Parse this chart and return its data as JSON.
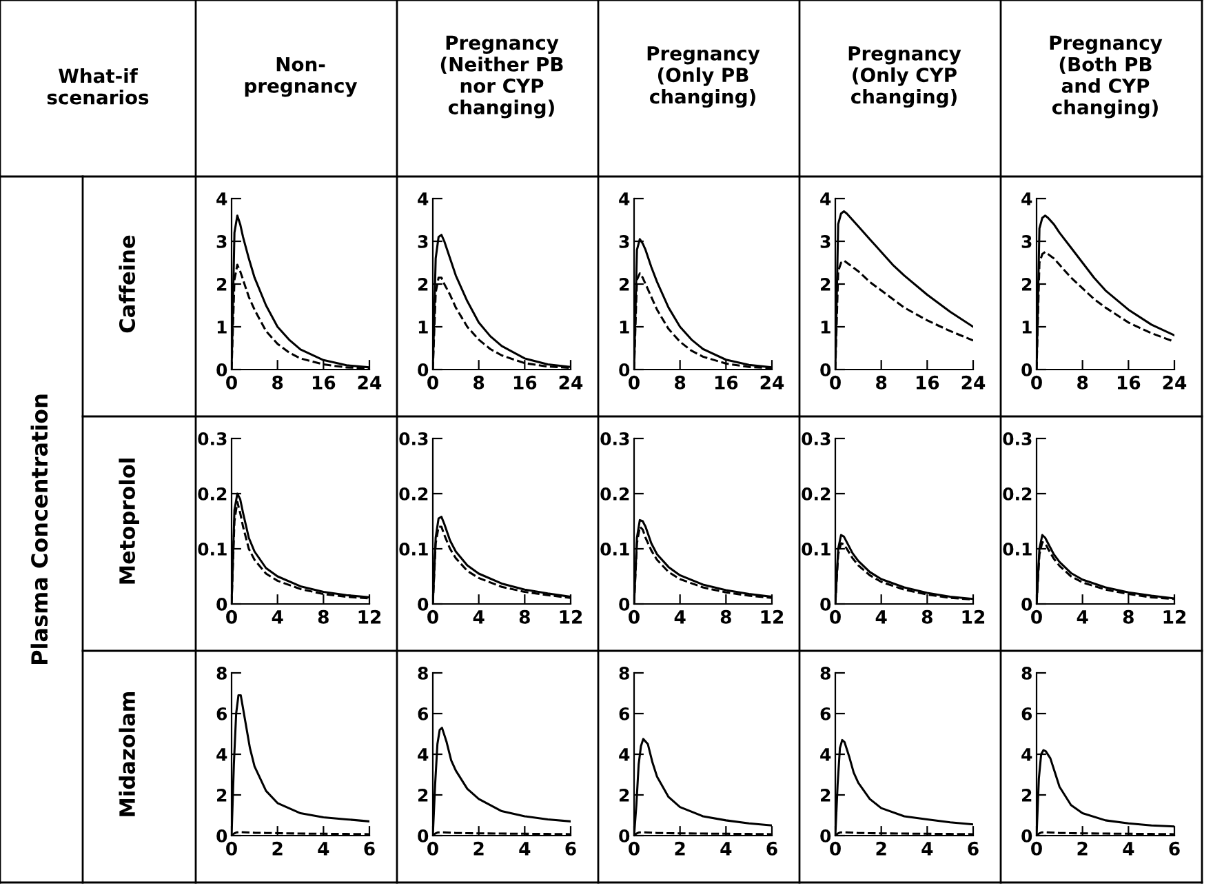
{
  "chart_data": [
    {
      "type": "line",
      "title": "Non-\npregnancy",
      "ylabel": "Caffeine",
      "annotations": [
        "What-if\nscenarios",
        "Plasma Concentration"
      ],
      "x": [
        0,
        0.5,
        1,
        1.5,
        2,
        3,
        4,
        6,
        8,
        10,
        12,
        16,
        20,
        24
      ],
      "series": [
        {
          "color": "#000000",
          "line_style": "solid",
          "values": [
            0,
            3.2,
            3.6,
            3.4,
            3.1,
            2.6,
            2.15,
            1.5,
            1.0,
            0.7,
            0.47,
            0.22,
            0.1,
            0.05
          ]
        },
        {
          "color": "#000000",
          "line_style": "dashed",
          "values": [
            0,
            2.1,
            2.45,
            2.3,
            2.1,
            1.7,
            1.4,
            0.9,
            0.6,
            0.4,
            0.26,
            0.12,
            0.05,
            0.03
          ]
        }
      ],
      "xlim": [
        0,
        24
      ],
      "ylim": [
        0,
        4
      ],
      "xticks": [
        0,
        8,
        16,
        24
      ],
      "yticks": [
        0,
        1,
        2,
        3,
        4
      ]
    },
    {
      "type": "line",
      "title": "Pregnancy\n(Neither PB\nnor CYP\nchanging)",
      "x": [
        0,
        0.5,
        1,
        1.5,
        2,
        3,
        4,
        6,
        8,
        10,
        12,
        16,
        20,
        24
      ],
      "series": [
        {
          "color": "#000000",
          "line_style": "solid",
          "values": [
            0,
            2.6,
            3.1,
            3.15,
            3.0,
            2.6,
            2.2,
            1.6,
            1.1,
            0.78,
            0.55,
            0.26,
            0.12,
            0.06
          ]
        },
        {
          "color": "#000000",
          "line_style": "dashed",
          "values": [
            0,
            1.8,
            2.15,
            2.15,
            2.0,
            1.75,
            1.45,
            1.0,
            0.7,
            0.48,
            0.33,
            0.15,
            0.07,
            0.04
          ]
        }
      ],
      "xlim": [
        0,
        24
      ],
      "ylim": [
        0,
        4
      ],
      "xticks": [
        0,
        8,
        16,
        24
      ],
      "yticks": [
        0,
        1,
        2,
        3,
        4
      ]
    },
    {
      "type": "line",
      "title": "Pregnancy\n(Only PB\nchanging)",
      "x": [
        0,
        0.5,
        1,
        1.5,
        2,
        3,
        4,
        6,
        8,
        10,
        12,
        16,
        20,
        24
      ],
      "series": [
        {
          "color": "#000000",
          "line_style": "solid",
          "values": [
            0,
            2.8,
            3.05,
            2.95,
            2.8,
            2.4,
            2.05,
            1.45,
            1.0,
            0.7,
            0.48,
            0.23,
            0.11,
            0.05
          ]
        },
        {
          "color": "#000000",
          "line_style": "dashed",
          "values": [
            0,
            2.1,
            2.25,
            2.15,
            2.0,
            1.7,
            1.4,
            0.95,
            0.65,
            0.44,
            0.3,
            0.14,
            0.06,
            0.03
          ]
        }
      ],
      "xlim": [
        0,
        24
      ],
      "ylim": [
        0,
        4
      ],
      "xticks": [
        0,
        8,
        16,
        24
      ],
      "yticks": [
        0,
        1,
        2,
        3,
        4
      ]
    },
    {
      "type": "line",
      "title": "Pregnancy\n(Only CYP\nchanging)",
      "x": [
        0,
        0.5,
        1,
        1.5,
        2,
        3,
        4,
        6,
        8,
        10,
        12,
        16,
        20,
        24
      ],
      "series": [
        {
          "color": "#000000",
          "line_style": "solid",
          "values": [
            0,
            3.4,
            3.65,
            3.7,
            3.65,
            3.5,
            3.35,
            3.05,
            2.75,
            2.45,
            2.2,
            1.75,
            1.35,
            1.0
          ]
        },
        {
          "color": "#000000",
          "line_style": "dashed",
          "values": [
            0,
            2.3,
            2.5,
            2.55,
            2.5,
            2.4,
            2.3,
            2.05,
            1.85,
            1.65,
            1.45,
            1.15,
            0.9,
            0.68
          ]
        }
      ],
      "xlim": [
        0,
        24
      ],
      "ylim": [
        0,
        4
      ],
      "xticks": [
        0,
        8,
        16,
        24
      ],
      "yticks": [
        0,
        1,
        2,
        3,
        4
      ]
    },
    {
      "type": "line",
      "title": "Pregnancy\n(Both PB\nand CYP\nchanging)",
      "x": [
        0,
        0.5,
        1,
        1.5,
        2,
        3,
        4,
        6,
        8,
        10,
        12,
        16,
        20,
        24
      ],
      "series": [
        {
          "color": "#000000",
          "line_style": "solid",
          "values": [
            0,
            3.3,
            3.55,
            3.6,
            3.55,
            3.4,
            3.2,
            2.85,
            2.5,
            2.15,
            1.85,
            1.4,
            1.05,
            0.8
          ]
        },
        {
          "color": "#000000",
          "line_style": "dashed",
          "values": [
            0,
            2.5,
            2.7,
            2.75,
            2.7,
            2.6,
            2.45,
            2.15,
            1.9,
            1.65,
            1.45,
            1.1,
            0.85,
            0.65
          ]
        }
      ],
      "xlim": [
        0,
        24
      ],
      "ylim": [
        0,
        4
      ],
      "xticks": [
        0,
        8,
        16,
        24
      ],
      "yticks": [
        0,
        1,
        2,
        3,
        4
      ]
    },
    {
      "type": "line",
      "ylabel": "Metoprolol",
      "x": [
        0,
        0.25,
        0.5,
        0.75,
        1,
        1.5,
        2,
        3,
        4,
        6,
        8,
        10,
        12
      ],
      "series": [
        {
          "color": "#000000",
          "line_style": "solid",
          "values": [
            0,
            0.17,
            0.2,
            0.19,
            0.165,
            0.12,
            0.095,
            0.065,
            0.05,
            0.032,
            0.022,
            0.016,
            0.012
          ]
        },
        {
          "color": "#000000",
          "line_style": "dashed",
          "values": [
            0,
            0.15,
            0.185,
            0.165,
            0.14,
            0.1,
            0.08,
            0.055,
            0.042,
            0.027,
            0.018,
            0.013,
            0.01
          ]
        }
      ],
      "xlim": [
        0,
        12
      ],
      "ylim": [
        0,
        0.3
      ],
      "xticks": [
        0,
        4,
        8,
        12
      ],
      "yticks": [
        0,
        0.1,
        0.2,
        0.3
      ]
    },
    {
      "type": "line",
      "x": [
        0,
        0.25,
        0.5,
        0.75,
        1,
        1.5,
        2,
        3,
        4,
        6,
        8,
        10,
        12
      ],
      "series": [
        {
          "color": "#000000",
          "line_style": "solid",
          "values": [
            0,
            0.12,
            0.155,
            0.158,
            0.145,
            0.115,
            0.095,
            0.07,
            0.055,
            0.037,
            0.026,
            0.019,
            0.013
          ]
        },
        {
          "color": "#000000",
          "line_style": "dashed",
          "values": [
            0,
            0.11,
            0.14,
            0.14,
            0.125,
            0.1,
            0.083,
            0.06,
            0.047,
            0.031,
            0.022,
            0.016,
            0.011
          ]
        }
      ],
      "xlim": [
        0,
        12
      ],
      "ylim": [
        0,
        0.3
      ],
      "xticks": [
        0,
        4,
        8,
        12
      ],
      "yticks": [
        0,
        0.1,
        0.2,
        0.3
      ]
    },
    {
      "type": "line",
      "x": [
        0,
        0.25,
        0.5,
        0.75,
        1,
        1.5,
        2,
        3,
        4,
        6,
        8,
        10,
        12
      ],
      "series": [
        {
          "color": "#000000",
          "line_style": "solid",
          "values": [
            0,
            0.12,
            0.152,
            0.15,
            0.14,
            0.11,
            0.09,
            0.067,
            0.052,
            0.035,
            0.025,
            0.018,
            0.013
          ]
        },
        {
          "color": "#000000",
          "line_style": "dashed",
          "values": [
            0,
            0.11,
            0.14,
            0.135,
            0.12,
            0.097,
            0.08,
            0.058,
            0.045,
            0.03,
            0.021,
            0.015,
            0.011
          ]
        }
      ],
      "xlim": [
        0,
        12
      ],
      "ylim": [
        0,
        0.3
      ],
      "xticks": [
        0,
        4,
        8,
        12
      ],
      "yticks": [
        0,
        0.1,
        0.2,
        0.3
      ]
    },
    {
      "type": "line",
      "x": [
        0,
        0.25,
        0.5,
        0.75,
        1,
        1.5,
        2,
        3,
        4,
        6,
        8,
        10,
        12
      ],
      "series": [
        {
          "color": "#000000",
          "line_style": "solid",
          "values": [
            0,
            0.1,
            0.125,
            0.122,
            0.112,
            0.092,
            0.078,
            0.058,
            0.045,
            0.03,
            0.02,
            0.013,
            0.009
          ]
        },
        {
          "color": "#000000",
          "line_style": "dashed",
          "values": [
            0,
            0.09,
            0.11,
            0.108,
            0.1,
            0.083,
            0.07,
            0.052,
            0.04,
            0.026,
            0.017,
            0.011,
            0.008
          ]
        }
      ],
      "xlim": [
        0,
        12
      ],
      "ylim": [
        0,
        0.3
      ],
      "xticks": [
        0,
        4,
        8,
        12
      ],
      "yticks": [
        0,
        0.1,
        0.2,
        0.3
      ]
    },
    {
      "type": "line",
      "x": [
        0,
        0.25,
        0.5,
        0.75,
        1,
        1.5,
        2,
        3,
        4,
        6,
        8,
        10,
        12
      ],
      "series": [
        {
          "color": "#000000",
          "line_style": "solid",
          "values": [
            0,
            0.1,
            0.125,
            0.12,
            0.11,
            0.09,
            0.076,
            0.056,
            0.044,
            0.03,
            0.021,
            0.015,
            0.01
          ]
        },
        {
          "color": "#000000",
          "line_style": "dashed",
          "values": [
            0,
            0.09,
            0.112,
            0.11,
            0.1,
            0.082,
            0.069,
            0.05,
            0.039,
            0.026,
            0.018,
            0.012,
            0.009
          ]
        }
      ],
      "xlim": [
        0,
        12
      ],
      "ylim": [
        0,
        0.3
      ],
      "xticks": [
        0,
        4,
        8,
        12
      ],
      "yticks": [
        0,
        0.1,
        0.2,
        0.3
      ]
    },
    {
      "type": "line",
      "ylabel": "Midazolam",
      "x": [
        0,
        0.1,
        0.2,
        0.3,
        0.4,
        0.6,
        0.8,
        1,
        1.5,
        2,
        3,
        4,
        5,
        6
      ],
      "series": [
        {
          "color": "#000000",
          "line_style": "solid",
          "values": [
            0,
            3.5,
            6.0,
            6.9,
            6.9,
            5.6,
            4.3,
            3.4,
            2.2,
            1.6,
            1.1,
            0.9,
            0.8,
            0.7
          ]
        },
        {
          "color": "#000000",
          "line_style": "dashed",
          "values": [
            0,
            0.1,
            0.15,
            0.17,
            0.17,
            0.16,
            0.15,
            0.14,
            0.13,
            0.12,
            0.1,
            0.09,
            0.08,
            0.07
          ]
        }
      ],
      "xlim": [
        0,
        6
      ],
      "ylim": [
        0,
        8
      ],
      "xticks": [
        0,
        2,
        4,
        6
      ],
      "yticks": [
        0,
        2,
        4,
        6,
        8
      ]
    },
    {
      "type": "line",
      "x": [
        0,
        0.1,
        0.2,
        0.3,
        0.4,
        0.6,
        0.8,
        1,
        1.5,
        2,
        3,
        4,
        5,
        6
      ],
      "series": [
        {
          "color": "#000000",
          "line_style": "solid",
          "values": [
            0,
            2.5,
            4.5,
            5.2,
            5.3,
            4.6,
            3.7,
            3.2,
            2.3,
            1.8,
            1.2,
            0.95,
            0.8,
            0.7
          ]
        },
        {
          "color": "#000000",
          "line_style": "dashed",
          "values": [
            0,
            0.1,
            0.15,
            0.16,
            0.16,
            0.15,
            0.14,
            0.13,
            0.12,
            0.11,
            0.1,
            0.09,
            0.08,
            0.07
          ]
        }
      ],
      "xlim": [
        0,
        6
      ],
      "ylim": [
        0,
        8
      ],
      "xticks": [
        0,
        2,
        4,
        6
      ],
      "yticks": [
        0,
        2,
        4,
        6,
        8
      ]
    },
    {
      "type": "line",
      "x": [
        0,
        0.1,
        0.2,
        0.3,
        0.4,
        0.6,
        0.8,
        1,
        1.5,
        2,
        3,
        4,
        5,
        6
      ],
      "series": [
        {
          "color": "#000000",
          "line_style": "solid",
          "values": [
            0,
            1.5,
            3.5,
            4.4,
            4.75,
            4.5,
            3.6,
            2.9,
            1.9,
            1.4,
            0.95,
            0.75,
            0.6,
            0.5
          ]
        },
        {
          "color": "#000000",
          "line_style": "dashed",
          "values": [
            0,
            0.1,
            0.15,
            0.16,
            0.16,
            0.15,
            0.14,
            0.13,
            0.12,
            0.11,
            0.1,
            0.09,
            0.08,
            0.07
          ]
        }
      ],
      "xlim": [
        0,
        6
      ],
      "ylim": [
        0,
        8
      ],
      "xticks": [
        0,
        2,
        4,
        6
      ],
      "yticks": [
        0,
        2,
        4,
        6,
        8
      ]
    },
    {
      "type": "line",
      "x": [
        0,
        0.1,
        0.2,
        0.3,
        0.4,
        0.6,
        0.8,
        1,
        1.5,
        2,
        3,
        4,
        5,
        6
      ],
      "series": [
        {
          "color": "#000000",
          "line_style": "solid",
          "values": [
            0,
            2.5,
            4.3,
            4.7,
            4.6,
            3.9,
            3.1,
            2.6,
            1.8,
            1.35,
            0.95,
            0.8,
            0.65,
            0.55
          ]
        },
        {
          "color": "#000000",
          "line_style": "dashed",
          "values": [
            0,
            0.1,
            0.15,
            0.16,
            0.16,
            0.15,
            0.14,
            0.13,
            0.12,
            0.11,
            0.1,
            0.09,
            0.08,
            0.07
          ]
        }
      ],
      "xlim": [
        0,
        6
      ],
      "ylim": [
        0,
        8
      ],
      "xticks": [
        0,
        2,
        4,
        6
      ],
      "yticks": [
        0,
        2,
        4,
        6,
        8
      ]
    },
    {
      "type": "line",
      "x": [
        0,
        0.1,
        0.2,
        0.3,
        0.4,
        0.6,
        0.8,
        1,
        1.5,
        2,
        3,
        4,
        5,
        6
      ],
      "series": [
        {
          "color": "#000000",
          "line_style": "solid",
          "values": [
            0,
            2.8,
            4.0,
            4.2,
            4.15,
            3.8,
            3.1,
            2.4,
            1.5,
            1.1,
            0.75,
            0.6,
            0.5,
            0.45
          ]
        },
        {
          "color": "#000000",
          "line_style": "dashed",
          "values": [
            0,
            0.1,
            0.15,
            0.16,
            0.16,
            0.15,
            0.14,
            0.13,
            0.12,
            0.11,
            0.1,
            0.09,
            0.08,
            0.07
          ]
        }
      ],
      "xlim": [
        0,
        6
      ],
      "ylim": [
        0,
        8
      ],
      "xticks": [
        0,
        2,
        4,
        6
      ],
      "yticks": [
        0,
        2,
        4,
        6,
        8
      ]
    }
  ]
}
